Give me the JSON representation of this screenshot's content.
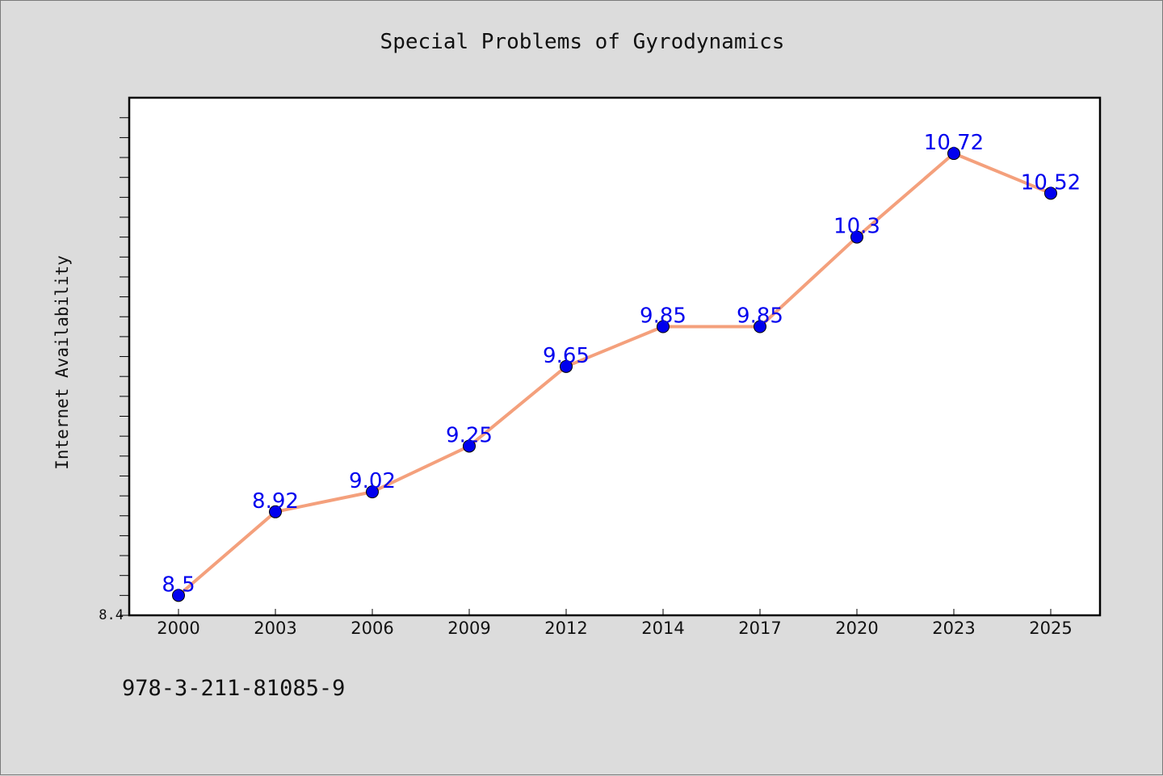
{
  "chart_data": {
    "type": "line",
    "title": "Special Problems of Gyrodynamics",
    "xlabel": "",
    "ylabel": "Internet Availability",
    "categories": [
      "2000",
      "2003",
      "2006",
      "2009",
      "2012",
      "2014",
      "2017",
      "2020",
      "2023",
      "2025"
    ],
    "series": [
      {
        "values": [
          8.5,
          8.92,
          9.02,
          9.25,
          9.65,
          9.85,
          9.85,
          10.3,
          10.72,
          10.52
        ]
      }
    ],
    "data_labels": [
      "8.5",
      "8.92",
      "9.02",
      "9.25",
      "9.65",
      "9.85",
      "9.85",
      "10.3",
      "10.72",
      "10.52"
    ],
    "ylim": [
      8.4,
      11.0
    ],
    "y_tick_label": "8.4",
    "grid": false,
    "legend": "none",
    "line_color": "#f4a07c",
    "marker_color": "#0000ee",
    "label_color": "#0000ee"
  },
  "footer": {
    "isbn": "978-3-211-81085-9"
  }
}
